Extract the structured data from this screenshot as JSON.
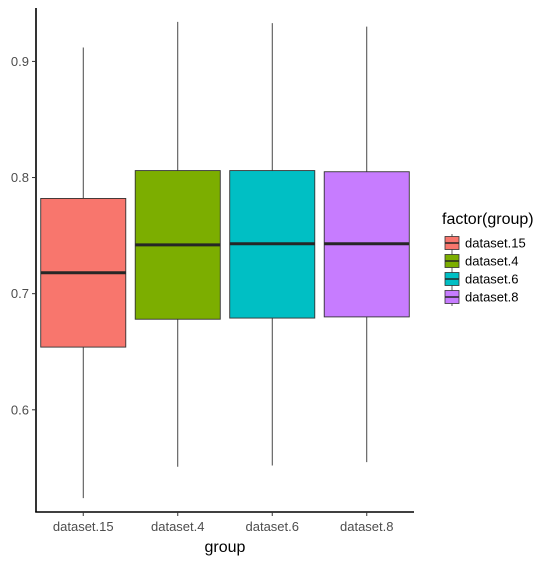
{
  "chart_data": {
    "type": "boxplot",
    "title": "",
    "xlabel": "group",
    "ylabel": "",
    "categories": [
      "dataset.15",
      "dataset.4",
      "dataset.6",
      "dataset.8"
    ],
    "colors": [
      "#F8766D",
      "#7CAE00",
      "#00BFC4",
      "#C77CFF"
    ],
    "boxes": [
      {
        "name": "dataset.15",
        "whisker_low": 0.524,
        "q1": 0.654,
        "median": 0.718,
        "q3": 0.782,
        "whisker_high": 0.912
      },
      {
        "name": "dataset.4",
        "whisker_low": 0.551,
        "q1": 0.678,
        "median": 0.742,
        "q3": 0.806,
        "whisker_high": 0.934
      },
      {
        "name": "dataset.6",
        "whisker_low": 0.552,
        "q1": 0.679,
        "median": 0.743,
        "q3": 0.806,
        "whisker_high": 0.933
      },
      {
        "name": "dataset.8",
        "whisker_low": 0.555,
        "q1": 0.68,
        "median": 0.743,
        "q3": 0.805,
        "whisker_high": 0.93
      }
    ],
    "y_ticks": [
      0.6,
      0.7,
      0.8,
      0.9
    ],
    "y_tick_labels": [
      "0.6",
      "0.7",
      "0.8",
      "0.9"
    ],
    "ylim": [
      0.512,
      0.946
    ],
    "grid": false,
    "legend": {
      "title": "factor(group)",
      "position": "right",
      "entries": [
        "dataset.15",
        "dataset.4",
        "dataset.6",
        "dataset.8"
      ]
    }
  }
}
